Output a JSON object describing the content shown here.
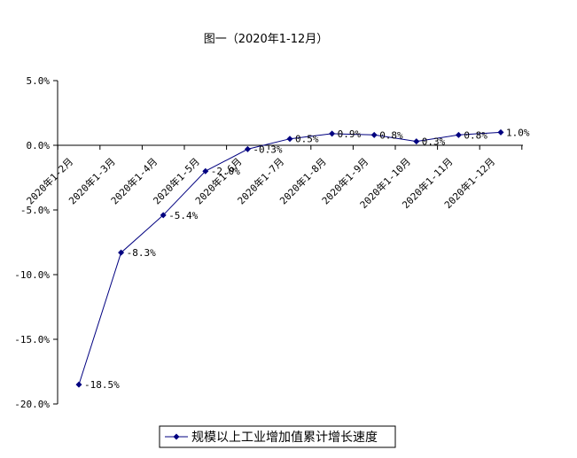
{
  "chart_data": {
    "type": "line",
    "title": "图一（2020年1-12月）",
    "categories": [
      "2020年1-2月",
      "2020年1-3月",
      "2020年1-4月",
      "2020年1-5月",
      "2020年1-6月",
      "2020年1-7月",
      "2020年1-8月",
      "2020年1-9月",
      "2020年1-10月",
      "2020年1-11月",
      "2020年1-12月"
    ],
    "series": [
      {
        "name": "规模以上工业增加值累计增长速度",
        "values": [
          -18.5,
          -8.3,
          -5.4,
          -2.0,
          -0.3,
          0.5,
          0.9,
          0.8,
          0.3,
          0.8,
          1.0
        ],
        "labels": [
          "-18.5%",
          "-8.3%",
          "-5.4%",
          "-2.0%",
          "-0.3%",
          "0.5%",
          "0.9%",
          "0.8%",
          "0.3%",
          "0.8%",
          "1.0%"
        ],
        "color": "#000080"
      }
    ],
    "ylim": [
      -20,
      5
    ],
    "yticks": [
      "5.0%",
      "0.0%",
      "-5.0%",
      "-10.0%",
      "-15.0%",
      "-20.0%"
    ],
    "ytick_values": [
      5,
      0,
      -5,
      -10,
      -15,
      -20
    ],
    "grid": false,
    "legend_position": "bottom-center"
  }
}
